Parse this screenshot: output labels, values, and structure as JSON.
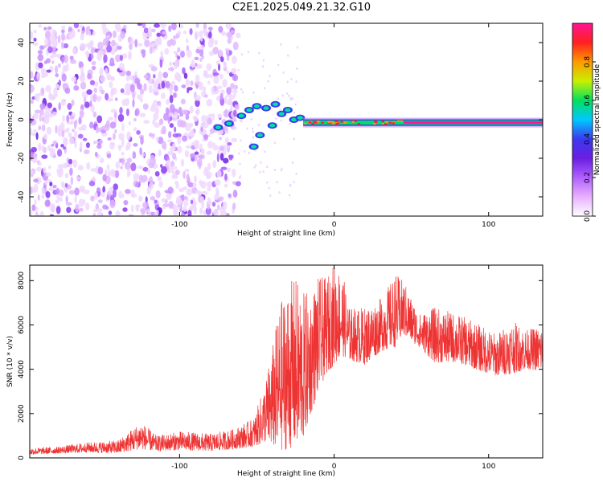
{
  "title": "C2E1.2025.049.21.32.G10",
  "chart_data": [
    {
      "type": "heatmap",
      "xlabel": "Height of straight line (km)",
      "ylabel": "Frequency (Hz)",
      "xlim": [
        -197,
        135
      ],
      "ylim": [
        -50,
        50
      ],
      "xticks": [
        -100,
        0,
        100
      ],
      "xtick_labels": [
        "-100",
        "0",
        "100"
      ],
      "yticks": [
        -40,
        -20,
        0,
        20,
        40
      ],
      "ytick_labels": [
        "-40",
        "-20",
        "0",
        "20",
        "40"
      ],
      "grid": false,
      "colorbar": {
        "label": "Normalized spectral amplitude",
        "range": [
          0,
          1
        ],
        "ticks": [
          0.0,
          0.2,
          0.4,
          0.6,
          0.8
        ],
        "tick_labels": [
          "0.0",
          "0.2",
          "0.4",
          "0.6",
          "0.8"
        ],
        "colormap": [
          "#ffffff",
          "#e8b0ff",
          "#b060ff",
          "#6a1ee0",
          "#3a3af0",
          "#00c8ff",
          "#00e060",
          "#c8f000",
          "#ff9a00",
          "#ff2020",
          "#ff1493"
        ]
      },
      "features": {
        "noise_region_x": [
          -197,
          -62
        ],
        "noise_freq_range": [
          -50,
          50
        ],
        "transition_points": [
          {
            "x": -75,
            "y": -4
          },
          {
            "x": -68,
            "y": -2
          },
          {
            "x": -60,
            "y": 2
          },
          {
            "x": -55,
            "y": 5
          },
          {
            "x": -50,
            "y": 7
          },
          {
            "x": -44,
            "y": 6
          },
          {
            "x": -38,
            "y": 8
          },
          {
            "x": -34,
            "y": 3
          },
          {
            "x": -30,
            "y": 5
          },
          {
            "x": -26,
            "y": 0
          },
          {
            "x": -22,
            "y": 1
          },
          {
            "x": -48,
            "y": -8
          },
          {
            "x": -52,
            "y": -14
          },
          {
            "x": -40,
            "y": -3
          }
        ],
        "steady_line": {
          "x_start": -20,
          "x_end": 135,
          "freq": -1.5,
          "amplitude": 0.95
        }
      }
    },
    {
      "type": "line",
      "xlabel": "Height of straight line (km)",
      "ylabel": "SNR (10 * v/v)",
      "xlim": [
        -197,
        135
      ],
      "ylim": [
        0,
        8700
      ],
      "xticks": [
        -100,
        0,
        100
      ],
      "xtick_labels": [
        "-100",
        "0",
        "100"
      ],
      "yticks": [
        0,
        2000,
        4000,
        6000,
        8000
      ],
      "ytick_labels": [
        "0",
        "2000",
        "4000",
        "6000",
        "8000"
      ],
      "grid": false,
      "color": "#ee3333",
      "envelope": {
        "x": [
          -197,
          -180,
          -160,
          -140,
          -125,
          -115,
          -100,
          -80,
          -65,
          -52,
          -45,
          -40,
          -35,
          -30,
          -25,
          -20,
          -15,
          -10,
          -5,
          0,
          5,
          10,
          20,
          30,
          40,
          45,
          55,
          65,
          80,
          95,
          105,
          115,
          125,
          135
        ],
        "low": [
          150,
          200,
          250,
          200,
          400,
          300,
          350,
          300,
          400,
          500,
          700,
          500,
          300,
          400,
          500,
          800,
          2000,
          3000,
          3800,
          4200,
          4600,
          4400,
          4200,
          4800,
          5000,
          5500,
          5000,
          4300,
          4300,
          3900,
          3700,
          3800,
          4000,
          3900
        ],
        "high": [
          450,
          500,
          700,
          800,
          1650,
          1000,
          1200,
          1100,
          1300,
          1800,
          3300,
          5000,
          7000,
          7800,
          8200,
          7500,
          7500,
          8200,
          8100,
          8800,
          8500,
          6800,
          6800,
          7200,
          8300,
          8000,
          6500,
          6800,
          6500,
          6000,
          5600,
          6200,
          5800,
          6000
        ]
      }
    }
  ]
}
